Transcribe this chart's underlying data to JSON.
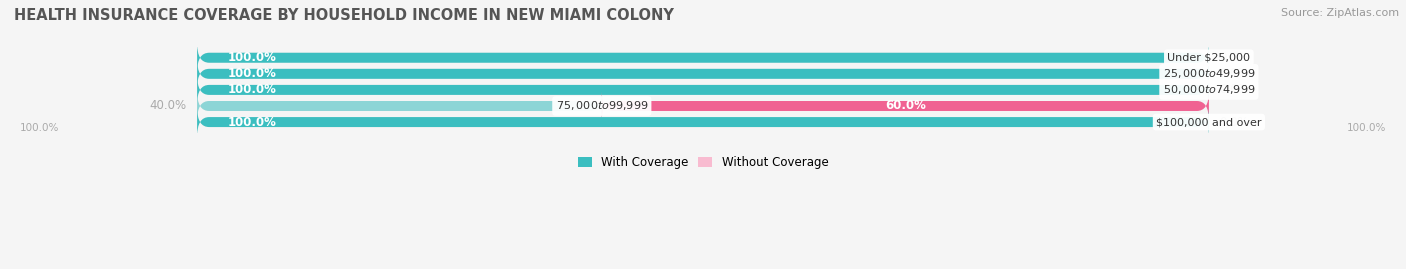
{
  "title": "HEALTH INSURANCE COVERAGE BY HOUSEHOLD INCOME IN NEW MIAMI COLONY",
  "source": "Source: ZipAtlas.com",
  "categories": [
    "Under $25,000",
    "$25,000 to $49,999",
    "$50,000 to $74,999",
    "$75,000 to $99,999",
    "$100,000 and over"
  ],
  "with_coverage": [
    100.0,
    100.0,
    100.0,
    40.0,
    100.0
  ],
  "without_coverage": [
    0.0,
    0.0,
    0.0,
    60.0,
    0.0
  ],
  "color_with_full": "#3bbec0",
  "color_with_partial": "#8dd5d6",
  "color_without_full": "#f06292",
  "color_without_small": "#f8bbd0",
  "color_bg_bar": "#e8e8e8",
  "color_background": "#f5f5f5",
  "bar_height": 0.62,
  "xlim_left": -18,
  "xlim_right": 118,
  "title_fontsize": 10.5,
  "label_fontsize": 8.5,
  "value_fontsize": 8.5,
  "source_fontsize": 8,
  "legend_fontsize": 8.5
}
